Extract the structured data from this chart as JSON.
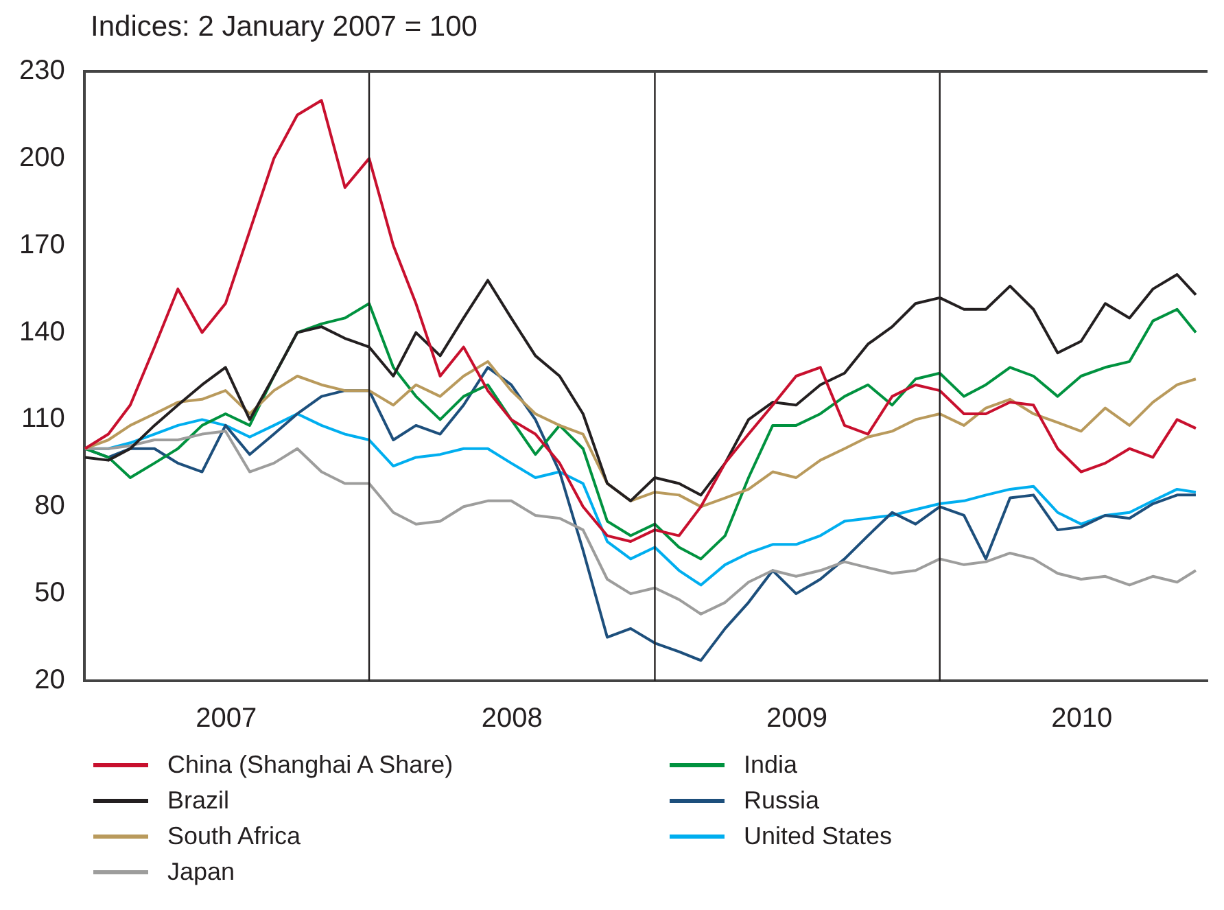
{
  "chart_data": {
    "type": "line",
    "ylabel": "Indices: 2 January 2007 = 100",
    "x": [
      "2007-01-02",
      "2007-02-01",
      "2007-03-01",
      "2007-04-01",
      "2007-05-01",
      "2007-06-01",
      "2007-07-01",
      "2007-08-01",
      "2007-09-01",
      "2007-10-01",
      "2007-11-01",
      "2007-12-01",
      "2008-01-01",
      "2008-02-01",
      "2008-03-01",
      "2008-04-01",
      "2008-05-01",
      "2008-06-01",
      "2008-07-01",
      "2008-08-01",
      "2008-09-01",
      "2008-10-01",
      "2008-11-01",
      "2008-12-01",
      "2009-01-01",
      "2009-02-01",
      "2009-03-01",
      "2009-04-01",
      "2009-05-01",
      "2009-06-01",
      "2009-07-01",
      "2009-08-01",
      "2009-09-01",
      "2009-10-01",
      "2009-11-01",
      "2009-12-01",
      "2010-01-01",
      "2010-02-01",
      "2010-03-01",
      "2010-04-01",
      "2010-05-01",
      "2010-06-01",
      "2010-07-01",
      "2010-08-01",
      "2010-09-01",
      "2010-10-01",
      "2010-11-01",
      "2010-11-25"
    ],
    "series": [
      {
        "name": "China (Shanghai A Share)",
        "color": "#c8102e",
        "values": [
          100,
          105,
          115,
          135,
          155,
          140,
          150,
          175,
          200,
          215,
          220,
          190,
          200,
          170,
          150,
          125,
          135,
          120,
          110,
          105,
          95,
          80,
          70,
          68,
          72,
          70,
          80,
          95,
          105,
          115,
          125,
          128,
          108,
          105,
          118,
          122,
          120,
          112,
          112,
          116,
          115,
          100,
          92,
          95,
          100,
          97,
          110,
          107
        ]
      },
      {
        "name": "Brazil",
        "color": "#231f20",
        "values": [
          97,
          96,
          100,
          108,
          115,
          122,
          128,
          110,
          125,
          140,
          142,
          138,
          135,
          125,
          140,
          132,
          145,
          158,
          145,
          132,
          125,
          112,
          88,
          82,
          90,
          88,
          84,
          95,
          110,
          116,
          115,
          122,
          126,
          136,
          142,
          150,
          152,
          148,
          148,
          156,
          148,
          133,
          137,
          150,
          145,
          155,
          160,
          153
        ]
      },
      {
        "name": "South Africa",
        "color": "#b99a5c",
        "values": [
          100,
          103,
          108,
          112,
          116,
          117,
          120,
          112,
          120,
          125,
          122,
          120,
          120,
          115,
          122,
          118,
          125,
          130,
          120,
          112,
          108,
          105,
          88,
          82,
          85,
          84,
          80,
          83,
          86,
          92,
          90,
          96,
          100,
          104,
          106,
          110,
          112,
          108,
          114,
          117,
          112,
          109,
          106,
          114,
          108,
          116,
          122,
          124
        ]
      },
      {
        "name": "Japan",
        "color": "#9d9d9c",
        "values": [
          100,
          100,
          101,
          103,
          103,
          105,
          106,
          92,
          95,
          100,
          92,
          88,
          88,
          78,
          74,
          75,
          80,
          82,
          82,
          77,
          76,
          72,
          55,
          50,
          52,
          48,
          43,
          47,
          54,
          58,
          56,
          58,
          61,
          59,
          57,
          58,
          62,
          60,
          61,
          64,
          62,
          57,
          55,
          56,
          53,
          56,
          54,
          58
        ]
      },
      {
        "name": "India",
        "color": "#00923f",
        "values": [
          100,
          97,
          90,
          95,
          100,
          108,
          112,
          108,
          125,
          140,
          143,
          145,
          150,
          128,
          118,
          110,
          118,
          122,
          110,
          98,
          108,
          100,
          75,
          70,
          74,
          66,
          62,
          70,
          90,
          108,
          108,
          112,
          118,
          122,
          115,
          124,
          126,
          118,
          122,
          128,
          125,
          118,
          125,
          128,
          130,
          144,
          148,
          140
        ]
      },
      {
        "name": "Russia",
        "color": "#1d4f7c",
        "values": [
          100,
          97,
          100,
          100,
          95,
          92,
          108,
          98,
          105,
          112,
          118,
          120,
          120,
          103,
          108,
          105,
          115,
          128,
          122,
          110,
          92,
          65,
          35,
          38,
          33,
          30,
          27,
          38,
          47,
          58,
          50,
          55,
          62,
          70,
          78,
          74,
          80,
          77,
          62,
          83,
          84,
          72,
          73,
          77,
          76,
          81,
          84,
          84
        ]
      },
      {
        "name": "United States",
        "color": "#00aeef",
        "values": [
          100,
          100,
          102,
          105,
          108,
          110,
          108,
          104,
          108,
          112,
          108,
          105,
          103,
          94,
          97,
          98,
          100,
          100,
          95,
          90,
          92,
          88,
          68,
          62,
          66,
          58,
          53,
          60,
          64,
          67,
          67,
          70,
          75,
          76,
          77,
          79,
          81,
          82,
          84,
          86,
          87,
          78,
          74,
          77,
          78,
          82,
          86,
          85
        ]
      }
    ],
    "xlim": [
      "2007-01-01",
      "2010-12-10"
    ],
    "xticks": [
      {
        "value": "2007-07-02",
        "label": "2007"
      },
      {
        "value": "2008-07-02",
        "label": "2008"
      },
      {
        "value": "2009-07-02",
        "label": "2009"
      },
      {
        "value": "2010-07-02",
        "label": "2010"
      }
    ],
    "ylim": [
      20,
      230
    ],
    "yticks": [
      20,
      50,
      80,
      110,
      140,
      170,
      200,
      230
    ],
    "ref_lines": [
      {
        "axis": "x",
        "value": "2008-01-01",
        "color": "#231f20"
      },
      {
        "axis": "x",
        "value": "2009-01-01",
        "color": "#231f20"
      },
      {
        "axis": "x",
        "value": "2010-01-01",
        "color": "#231f20"
      }
    ],
    "legend": "bottom",
    "marker": "none",
    "line_style": "solid"
  }
}
